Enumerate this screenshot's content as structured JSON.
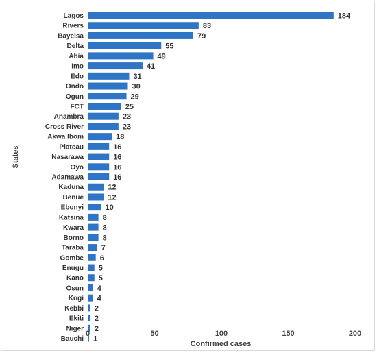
{
  "chart_data": {
    "type": "bar",
    "orientation": "horizontal",
    "xlabel": "Confirmed cases",
    "ylabel": "States",
    "xlim": [
      0,
      200
    ],
    "xticks": [
      0,
      50,
      100,
      150,
      200
    ],
    "grid": false,
    "bar_color": "#2e75c6",
    "categories": [
      "Lagos",
      "Rivers",
      "Bayelsa",
      "Delta",
      "Abia",
      "Imo",
      "Edo",
      "Ondo",
      "Ogun",
      "FCT",
      "Anambra",
      "Cross River",
      "Akwa Ibom",
      "Plateau",
      "Nasarawa",
      "Oyo",
      "Adamawa",
      "Kaduna",
      "Benue",
      "Ebonyi",
      "Katsina",
      "Kwara",
      "Borno",
      "Taraba",
      "Gombe",
      "Enugu",
      "Kano",
      "Osun",
      "Kogi",
      "Kebbi",
      "Ekiti",
      "Niger",
      "Bauchi"
    ],
    "values": [
      184,
      83,
      79,
      55,
      49,
      41,
      31,
      30,
      29,
      25,
      23,
      23,
      18,
      16,
      16,
      16,
      16,
      12,
      12,
      10,
      8,
      8,
      8,
      7,
      6,
      5,
      5,
      4,
      4,
      2,
      2,
      2,
      1
    ]
  }
}
